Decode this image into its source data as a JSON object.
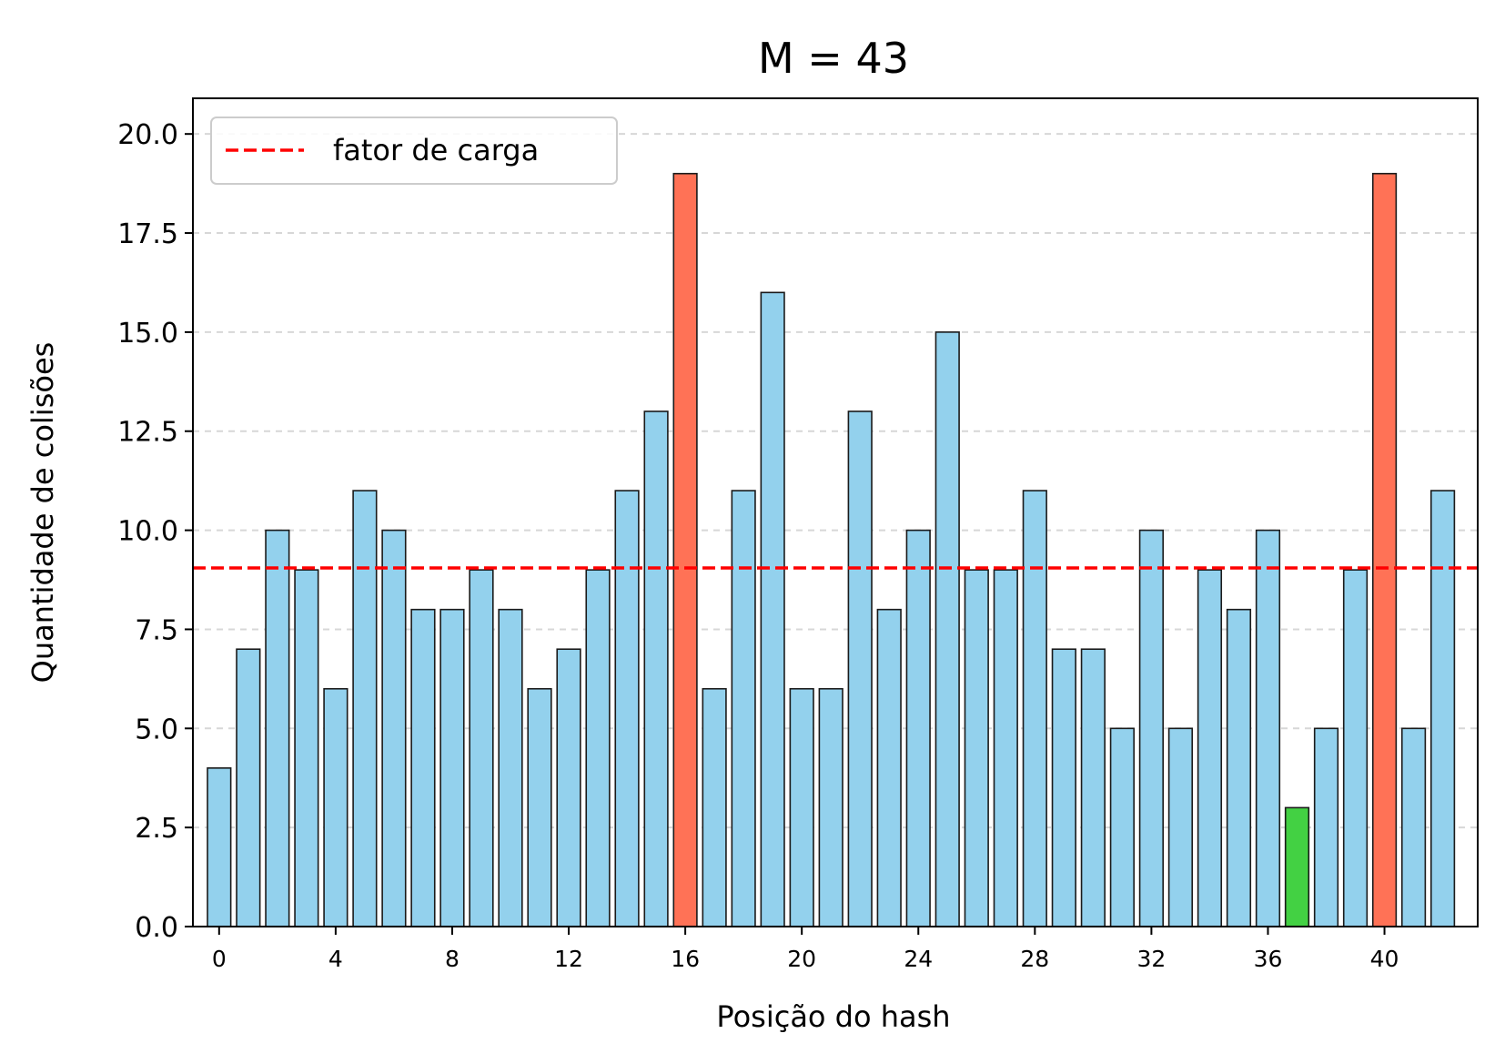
{
  "chart_data": {
    "type": "bar",
    "title": "M = 43",
    "xlabel": "Posição do hash",
    "ylabel": "Quantidade de colisões",
    "x": [
      0,
      1,
      2,
      3,
      4,
      5,
      6,
      7,
      8,
      9,
      10,
      11,
      12,
      13,
      14,
      15,
      16,
      17,
      18,
      19,
      20,
      21,
      22,
      23,
      24,
      25,
      26,
      27,
      28,
      29,
      30,
      31,
      32,
      33,
      34,
      35,
      36,
      37,
      38,
      39,
      40,
      41,
      42
    ],
    "values": [
      4,
      7,
      10,
      9,
      6,
      11,
      10,
      8,
      8,
      9,
      8,
      6,
      7,
      9,
      11,
      13,
      19,
      6,
      11,
      16,
      6,
      6,
      13,
      8,
      10,
      15,
      9,
      9,
      11,
      7,
      7,
      5,
      10,
      5,
      9,
      8,
      10,
      3,
      5,
      9,
      19,
      5,
      11
    ],
    "xticks": [
      0,
      4,
      8,
      12,
      16,
      20,
      24,
      28,
      32,
      36,
      40
    ],
    "xtick_labels": [
      "0",
      "4",
      "8",
      "12",
      "16",
      "20",
      "24",
      "28",
      "32",
      "36",
      "40"
    ],
    "yticks": [
      0,
      2.5,
      5,
      7.5,
      10,
      12.5,
      15,
      17.5,
      20
    ],
    "ytick_labels": [
      "0.0",
      "2.5",
      "5.0",
      "7.5",
      "10.0",
      "12.5",
      "15.0",
      "17.5",
      "20.0"
    ],
    "xlim": [
      -0.9,
      43.2
    ],
    "ylim": [
      0,
      20.9
    ],
    "grid": "y-dashed",
    "legend": {
      "position": "top-left",
      "entries": [
        {
          "label": "fator de carga",
          "style": "dashed-line",
          "color": "#ff0000"
        }
      ]
    },
    "reference_line": {
      "label": "fator de carga",
      "y": 9.05,
      "color": "#ff0000",
      "style": "dashed"
    },
    "colors": {
      "default": "#93d1ed",
      "max": "#ff7256",
      "min": "#43d143",
      "edge": "#1a1a1a"
    },
    "highlights": {
      "max_indices": [
        16,
        40
      ],
      "min_indices": [
        37
      ]
    }
  }
}
